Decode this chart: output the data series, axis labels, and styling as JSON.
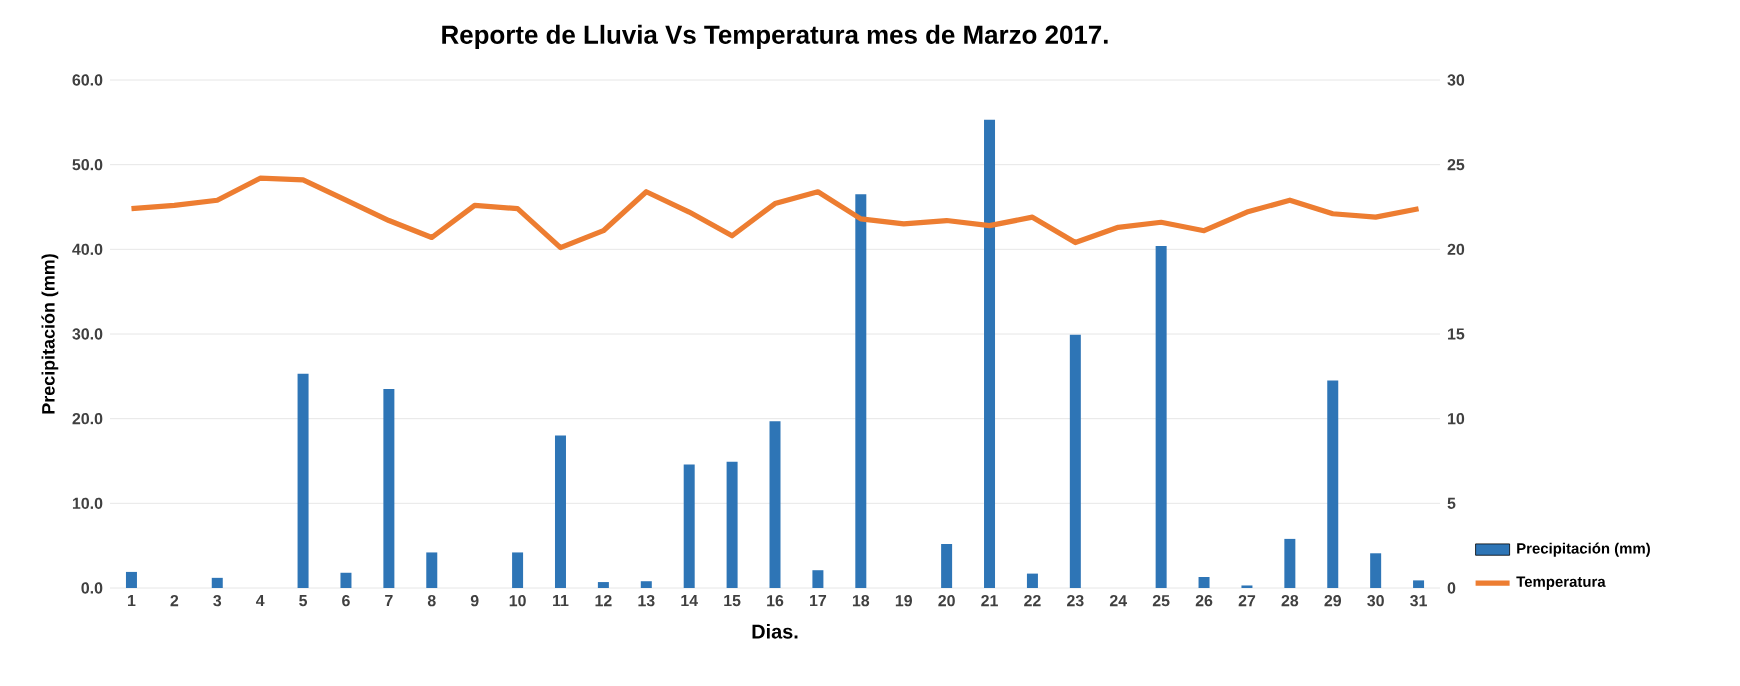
{
  "chart_data": {
    "type": "bar",
    "title": "Reporte de Lluvia Vs Temperatura mes de Marzo 2017.",
    "xlabel": "Dias.",
    "ylabel": "Precipitación (mm)",
    "categories": [
      "1",
      "2",
      "3",
      "4",
      "5",
      "6",
      "7",
      "8",
      "9",
      "10",
      "11",
      "12",
      "13",
      "14",
      "15",
      "16",
      "17",
      "18",
      "19",
      "20",
      "21",
      "22",
      "23",
      "24",
      "25",
      "26",
      "27",
      "28",
      "29",
      "30",
      "31"
    ],
    "series": [
      {
        "name": "Precipitación (mm)",
        "color": "#2e75b6",
        "values": [
          1.9,
          0,
          1.2,
          0,
          25.3,
          1.8,
          23.5,
          4.2,
          0,
          4.2,
          18.0,
          0.7,
          0.8,
          14.6,
          14.9,
          19.7,
          2.1,
          46.5,
          0,
          5.2,
          55.3,
          1.7,
          29.9,
          0,
          40.4,
          1.3,
          0.3,
          5.8,
          24.5,
          4.1,
          0.9
        ]
      },
      {
        "name": "Temperatura",
        "type": "line",
        "axis": "y2",
        "color": "#ed7d31",
        "values": [
          22.4,
          22.6,
          22.9,
          24.2,
          24.1,
          22.9,
          21.7,
          20.7,
          22.6,
          22.4,
          20.1,
          21.1,
          23.4,
          22.2,
          20.8,
          22.7,
          23.4,
          21.8,
          21.5,
          21.7,
          21.4,
          21.9,
          20.4,
          21.3,
          21.6,
          21.1,
          22.2,
          22.9,
          22.1,
          21.9,
          22.4
        ]
      }
    ],
    "ylim": [
      0,
      60
    ],
    "yticks": [
      {
        "value": 0,
        "label": "0.0"
      },
      {
        "value": 10,
        "label": "10.0"
      },
      {
        "value": 20,
        "label": "20.0"
      },
      {
        "value": 30,
        "label": "30.0"
      },
      {
        "value": 40,
        "label": "40.0"
      },
      {
        "value": 50,
        "label": "50.0"
      },
      {
        "value": 60,
        "label": "60.0"
      }
    ],
    "y2lim": [
      0,
      30
    ],
    "y2ticks": [
      0,
      5,
      10,
      15,
      20,
      25,
      30
    ],
    "grid": "y",
    "legend": "bottom right"
  }
}
